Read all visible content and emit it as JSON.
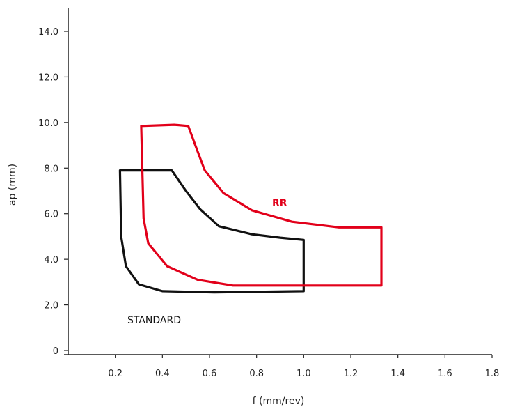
{
  "chart_data": {
    "type": "line",
    "title": "",
    "xlabel": "f (mm/rev)",
    "ylabel": "ap (mm)",
    "xlim": [
      0,
      1.8
    ],
    "ylim": [
      0,
      14
    ],
    "x_ticks": [
      "0.2",
      "0.4",
      "0.6",
      "0.8",
      "1.0",
      "1.2",
      "1.4",
      "1.6",
      "1.8"
    ],
    "y_ticks": [
      "0",
      "2.0",
      "4.0",
      "6.0",
      "8.0",
      "10.0",
      "12.0",
      "14.0"
    ],
    "grid": false,
    "series": [
      {
        "name": "STANDARD",
        "color": "#111111",
        "closed": true,
        "points": [
          [
            0.22,
            7.9
          ],
          [
            0.44,
            7.9
          ],
          [
            0.5,
            7.0
          ],
          [
            0.56,
            6.2
          ],
          [
            0.64,
            5.45
          ],
          [
            0.78,
            5.1
          ],
          [
            0.9,
            4.95
          ],
          [
            1.0,
            4.85
          ],
          [
            1.0,
            2.6
          ],
          [
            0.62,
            2.55
          ],
          [
            0.4,
            2.6
          ],
          [
            0.3,
            2.9
          ],
          [
            0.245,
            3.7
          ],
          [
            0.225,
            5.0
          ],
          [
            0.22,
            7.9
          ]
        ]
      },
      {
        "name": "RR",
        "color": "#e2001a",
        "closed": true,
        "points": [
          [
            0.31,
            9.85
          ],
          [
            0.45,
            9.9
          ],
          [
            0.51,
            9.85
          ],
          [
            0.54,
            9.0
          ],
          [
            0.58,
            7.9
          ],
          [
            0.66,
            6.9
          ],
          [
            0.78,
            6.15
          ],
          [
            0.95,
            5.65
          ],
          [
            1.15,
            5.4
          ],
          [
            1.33,
            5.4
          ],
          [
            1.33,
            2.85
          ],
          [
            0.7,
            2.85
          ],
          [
            0.55,
            3.1
          ],
          [
            0.42,
            3.7
          ],
          [
            0.34,
            4.7
          ],
          [
            0.32,
            5.8
          ],
          [
            0.31,
            9.85
          ]
        ]
      }
    ]
  }
}
